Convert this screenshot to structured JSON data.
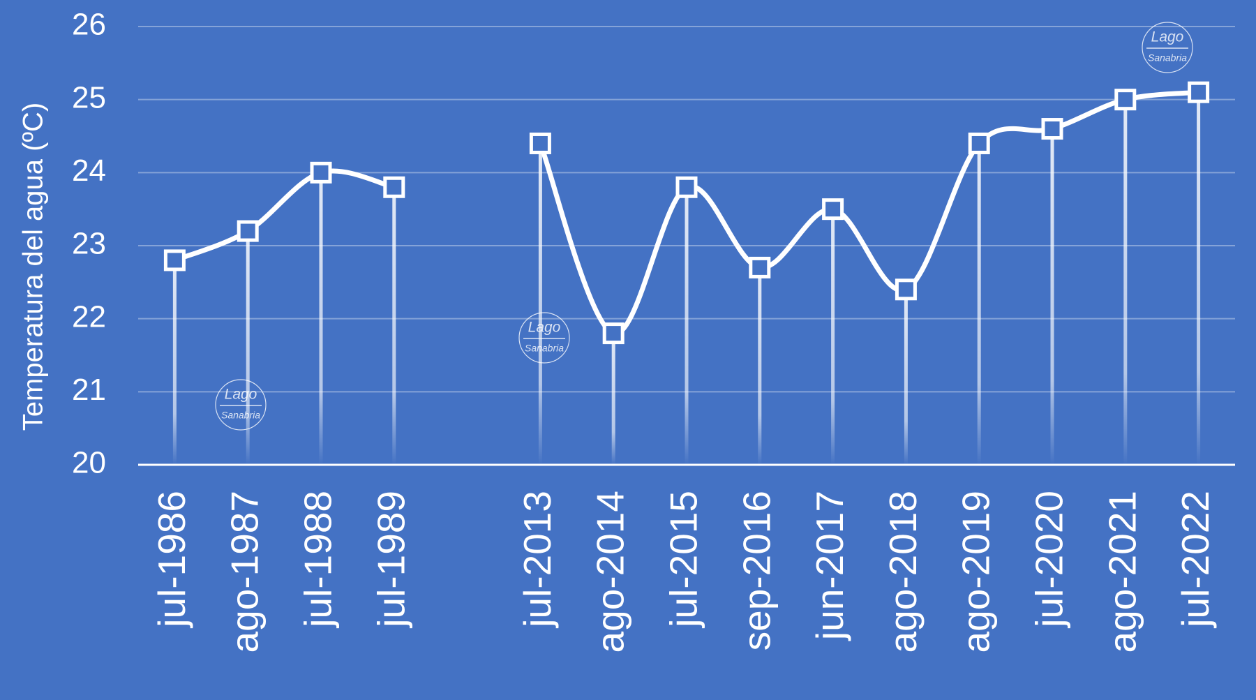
{
  "chart_data": {
    "type": "line",
    "y_label": "Temperatura del agua (ºC)",
    "categories": [
      "jul-1986",
      "ago-1987",
      "jul-1988",
      "jul-1989",
      null,
      "jul-2013",
      "ago-2014",
      "jul-2015",
      "sep-2016",
      "jun-2017",
      "ago-2018",
      "ago-2019",
      "jul-2020",
      "ago-2021",
      "jul-2022"
    ],
    "values": [
      22.8,
      23.2,
      24.0,
      23.8,
      null,
      24.4,
      21.8,
      23.8,
      22.7,
      23.5,
      22.4,
      24.4,
      24.6,
      25.0,
      25.1
    ],
    "color": "#ffffff",
    "ylim": [
      20,
      26
    ],
    "yticks": [
      20,
      21,
      22,
      23,
      24,
      25,
      26
    ],
    "grid": true,
    "watermark": {
      "top": "Lago",
      "bottom": "Sanabria"
    }
  }
}
